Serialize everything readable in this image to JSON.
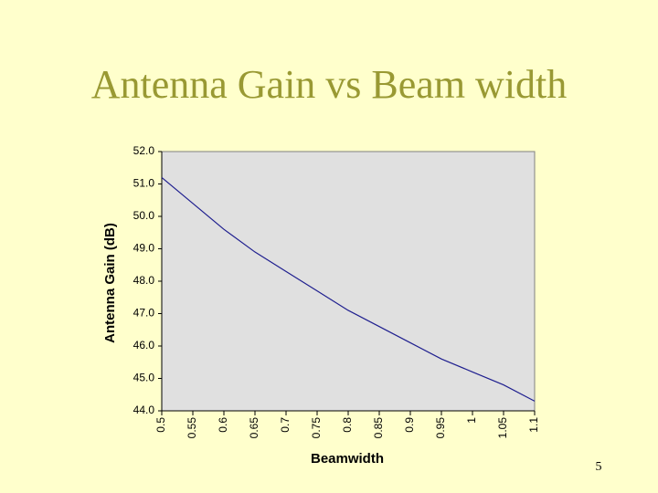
{
  "chart_data": {
    "type": "line",
    "title": "Antenna Gain vs Beam width",
    "x_label": "Beamwidth",
    "y_label": "Antenna Gain (dB)",
    "x": [
      0.5,
      0.55,
      0.6,
      0.65,
      0.7,
      0.75,
      0.8,
      0.85,
      0.9,
      0.95,
      1,
      1.05,
      1.1
    ],
    "series": [
      {
        "name": "Antenna Gain",
        "color": "#1f1f8f",
        "values": [
          51.2,
          50.4,
          49.6,
          48.9,
          48.3,
          47.7,
          47.1,
          46.6,
          46.1,
          45.6,
          45.2,
          44.8,
          44.3
        ]
      }
    ],
    "xlim": [
      0.5,
      1.1
    ],
    "xticks": [
      0.5,
      0.55,
      0.6,
      0.65,
      0.7,
      0.75,
      0.8,
      0.85,
      0.9,
      0.95,
      1,
      1.05,
      1.1
    ],
    "ylim": [
      44,
      52
    ],
    "yticks": [
      {
        "value": 44,
        "label": "44.0"
      },
      {
        "value": 45,
        "label": "45.0"
      },
      {
        "value": 46,
        "label": "46.0"
      },
      {
        "value": 47,
        "label": "47.0"
      },
      {
        "value": 48,
        "label": "48.0"
      },
      {
        "value": 49,
        "label": "49.0"
      },
      {
        "value": 50,
        "label": "50.0"
      },
      {
        "value": 51,
        "label": "51.0"
      },
      {
        "value": 52,
        "label": "52.0"
      }
    ],
    "grid": false,
    "plot_background": "#e0e0e0"
  },
  "page_number": "5"
}
